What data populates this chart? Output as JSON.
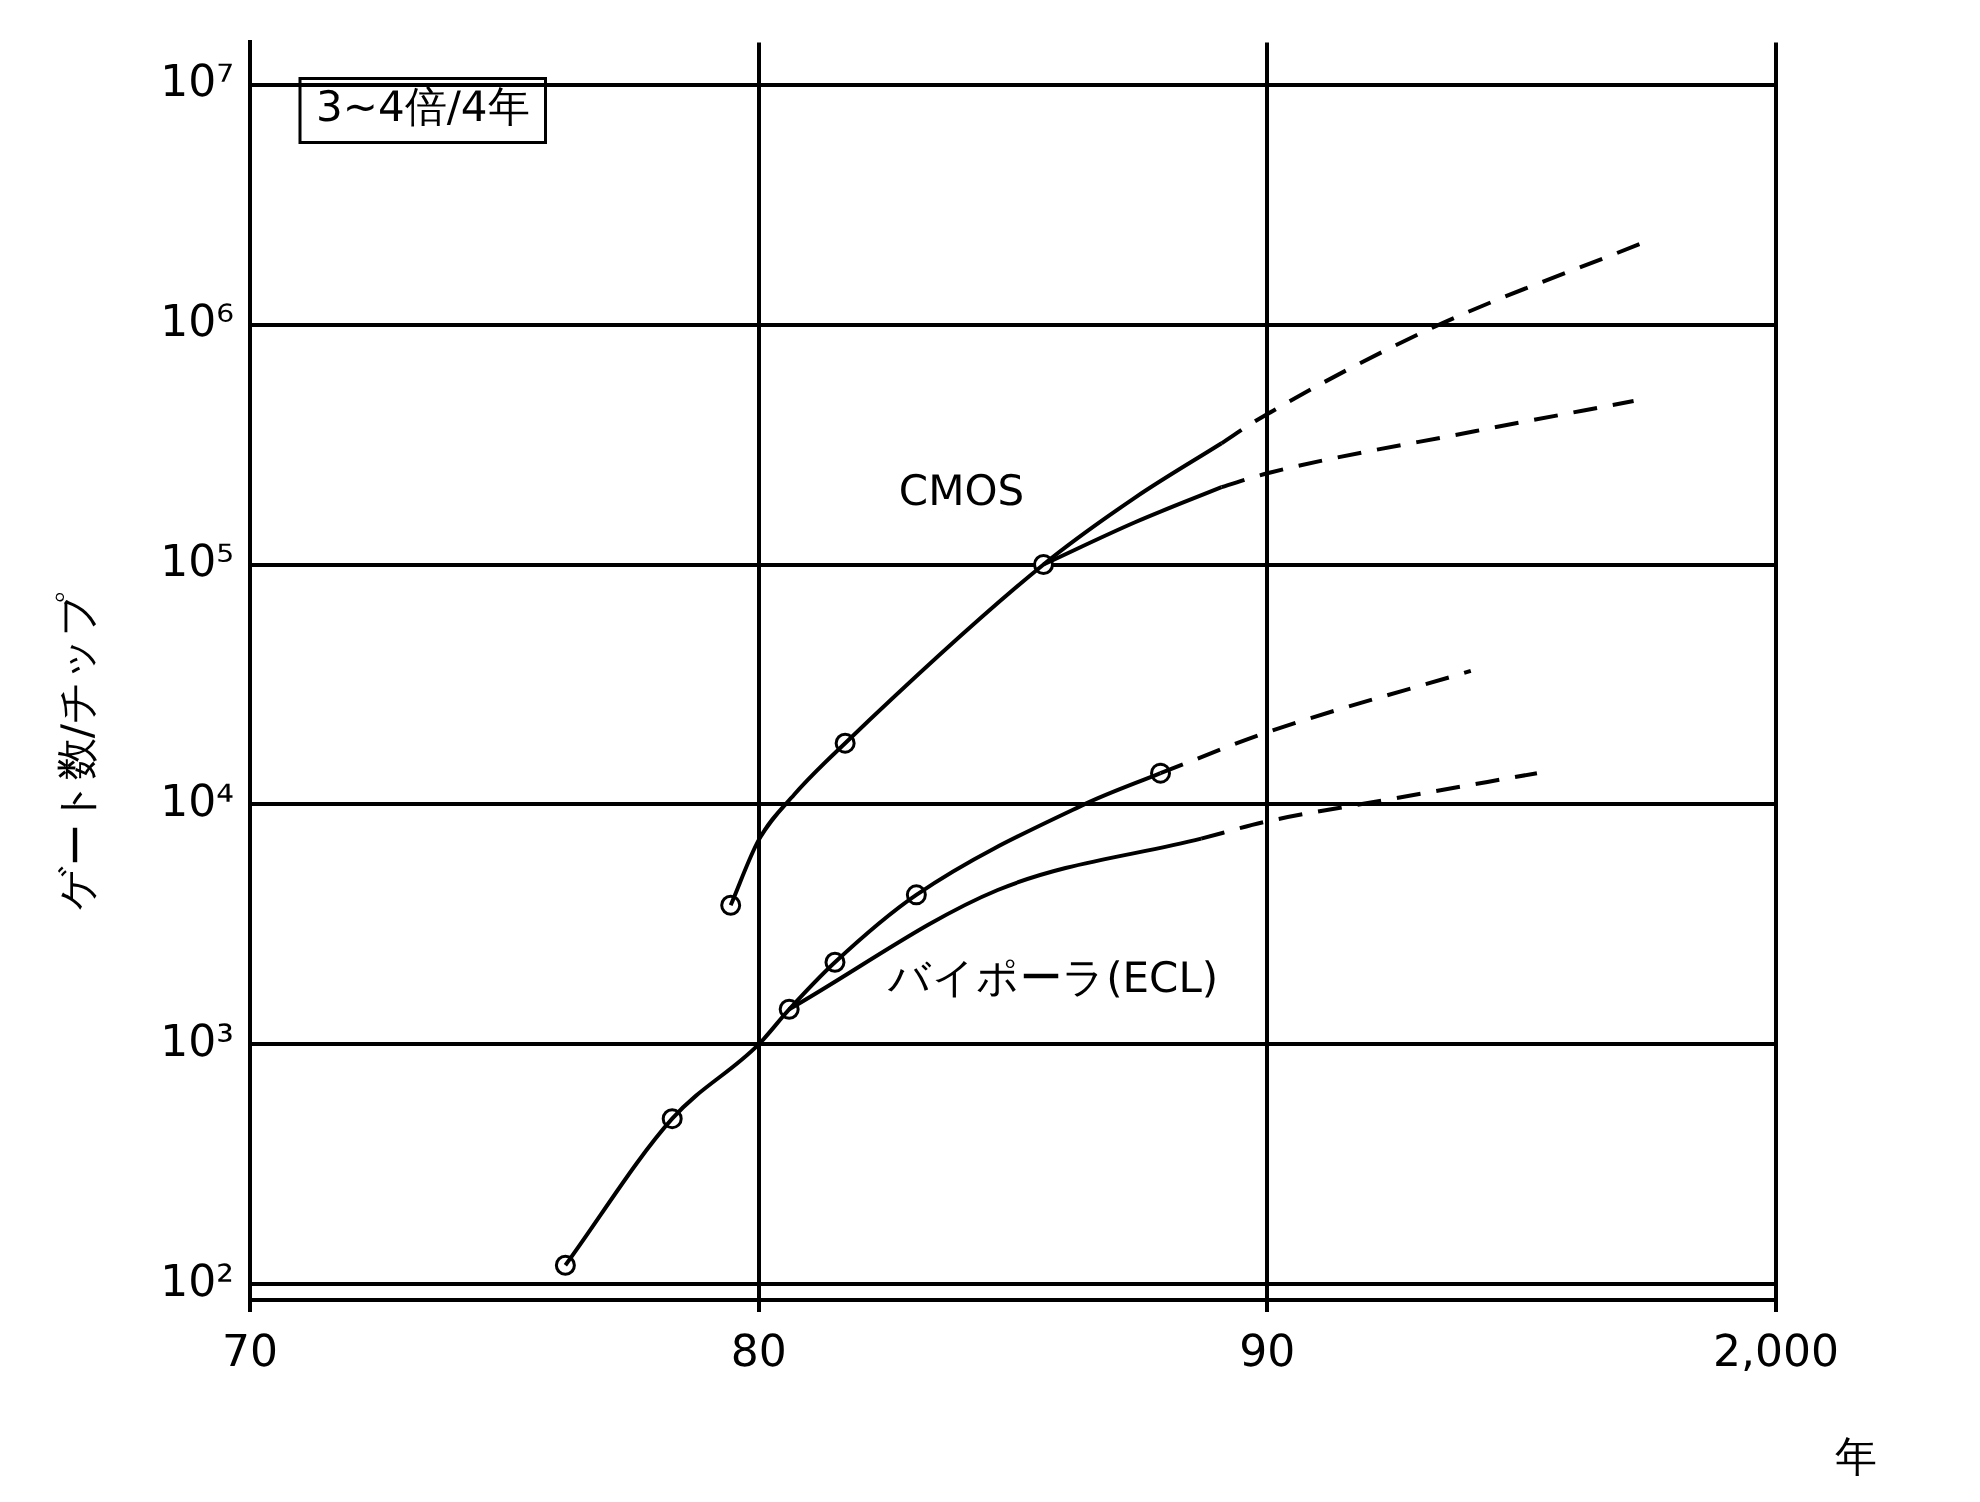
{
  "chart_data": {
    "type": "line",
    "xlabel": "年",
    "ylabel": "ゲート数/チップ",
    "log": "y",
    "grid": true,
    "legend": false,
    "xlim": [
      1970,
      2000
    ],
    "xticks": [
      {
        "value": 1970,
        "label": "70"
      },
      {
        "value": 1980,
        "label": "80"
      },
      {
        "value": 1990,
        "label": "90"
      },
      {
        "value": 2000,
        "label": "2,000"
      }
    ],
    "ylim": [
      86,
      15000000
    ],
    "yticks": [
      {
        "value": 100,
        "label": "10²"
      },
      {
        "value": 1000,
        "label": "10³"
      },
      {
        "value": 10000,
        "label": "10⁴"
      },
      {
        "value": 100000,
        "label": "10⁵"
      },
      {
        "value": 1000000,
        "label": "10⁶"
      },
      {
        "value": 10000000,
        "label": "10⁷"
      }
    ],
    "annotations": [
      "3~4倍/4年"
    ],
    "series": [
      {
        "name": "CMOS",
        "color": "#000000",
        "line_style": "solid",
        "marker": "none",
        "x": [
          1979.45,
          1980.0,
          1980.7,
          1981.7,
          1985.6,
          1987.4,
          1989.1
        ],
        "values": [
          3800,
          7100,
          11000,
          18000,
          100000,
          190000,
          320000
        ]
      },
      {
        "color": "#000000",
        "line_style": "solid",
        "marker": "none",
        "x": [
          1985.6,
          1987.4,
          1989.1
        ],
        "values": [
          100000,
          150000,
          210000
        ]
      },
      {
        "color": "#000000",
        "line_style": "dashed",
        "marker": "none",
        "x": [
          1989.1,
          1989.8,
          1993.2,
          1997.4
        ],
        "values": [
          320000,
          400000,
          960000,
          2200000
        ]
      },
      {
        "color": "#000000",
        "line_style": "dashed",
        "marker": "none",
        "x": [
          1989.1,
          1990.0,
          1994.1,
          1997.2
        ],
        "values": [
          210000,
          240000,
          360000,
          480000
        ]
      },
      {
        "name": "バイポーラ(ECL)",
        "color": "#000000",
        "line_style": "solid",
        "marker": "none",
        "x": [
          1976.2,
          1978.3,
          1980.0,
          1980.6,
          1981.5,
          1983.1,
          1986.4,
          1987.9
        ],
        "values": [
          120,
          490,
          1000,
          1400,
          2200,
          4200,
          10000,
          13500
        ]
      },
      {
        "color": "#000000",
        "line_style": "dashed",
        "marker": "none",
        "x": [
          1987.9,
          1990.0,
          1994.0
        ],
        "values": [
          13500,
          20000,
          36000
        ]
      },
      {
        "color": "#000000",
        "line_style": "solid",
        "marker": "none",
        "x": [
          1980.6,
          1984.7,
          1988.7
        ],
        "values": [
          1400,
          4400,
          7200
        ]
      },
      {
        "color": "#000000",
        "line_style": "dashed",
        "marker": "none",
        "x": [
          1988.7,
          1990.0,
          1992.4,
          1995.3
        ],
        "values": [
          7200,
          8500,
          10500,
          13500
        ]
      },
      {
        "type": "scatter",
        "color": "#000000",
        "marker": "circle",
        "x": [
          1979.45,
          1981.7,
          1985.6,
          1976.2,
          1978.3,
          1980.6,
          1981.5,
          1983.1,
          1987.9
        ],
        "values": [
          3800,
          18000,
          100000,
          120,
          490,
          1400,
          2200,
          4200,
          13500
        ]
      }
    ]
  }
}
